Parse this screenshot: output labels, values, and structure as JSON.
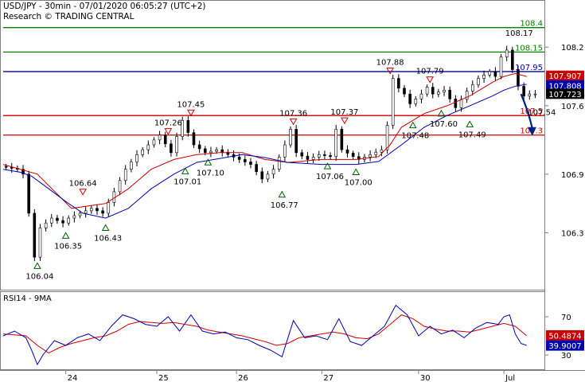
{
  "chart_data": [
    {
      "type": "line",
      "subtype": "candlestick",
      "title": "USD/JPY - 30min - 07/01/2020 06:05:27 (UTC+2)",
      "subtitle": "Research © TRADING CENTRAL",
      "ylim": [
        105.75,
        108.65
      ],
      "y_ticks": [
        {
          "value": 108.2,
          "label": "108.2"
        },
        {
          "value": 107.6,
          "label": "107.6"
        },
        {
          "value": 106.9,
          "label": "106.9"
        },
        {
          "value": 106.3,
          "label": "106.3"
        }
      ],
      "x_ticks": [
        {
          "bar": 11,
          "label": "24"
        },
        {
          "bar": 27,
          "label": "25"
        },
        {
          "bar": 41,
          "label": "26"
        },
        {
          "bar": 56,
          "label": "27"
        },
        {
          "bar": 73,
          "label": "30"
        },
        {
          "bar": 88,
          "label": "Jul"
        }
      ],
      "grid": false,
      "price_path": [
        [
          0,
          106.98
        ],
        [
          3,
          106.95
        ],
        [
          4,
          106.9
        ],
        [
          5,
          106.5
        ],
        [
          6,
          106.05
        ],
        [
          7,
          106.35
        ],
        [
          9,
          106.45
        ],
        [
          11,
          106.4
        ],
        [
          12,
          106.45
        ],
        [
          14,
          106.5
        ],
        [
          16,
          106.55
        ],
        [
          18,
          106.5
        ],
        [
          20,
          106.72
        ],
        [
          22,
          106.95
        ],
        [
          24,
          107.1
        ],
        [
          26,
          107.2
        ],
        [
          28,
          107.3
        ],
        [
          30,
          107.12
        ],
        [
          32,
          107.45
        ],
        [
          34,
          107.2
        ],
        [
          36,
          107.12
        ],
        [
          38,
          107.15
        ],
        [
          40,
          107.1
        ],
        [
          42,
          107.05
        ],
        [
          44,
          107.0
        ],
        [
          46,
          106.85
        ],
        [
          48,
          106.95
        ],
        [
          50,
          107.2
        ],
        [
          51,
          107.36
        ],
        [
          52,
          107.12
        ],
        [
          54,
          107.05
        ],
        [
          56,
          107.1
        ],
        [
          58,
          107.08
        ],
        [
          59,
          107.36
        ],
        [
          60,
          107.15
        ],
        [
          62,
          107.08
        ],
        [
          63,
          107.05
        ],
        [
          65,
          107.1
        ],
        [
          67,
          107.15
        ],
        [
          68,
          107.4
        ],
        [
          69,
          107.88
        ],
        [
          70,
          107.78
        ],
        [
          71,
          107.72
        ],
        [
          72,
          107.62
        ],
        [
          74,
          107.72
        ],
        [
          75,
          107.79
        ],
        [
          76,
          107.72
        ],
        [
          78,
          107.76
        ],
        [
          80,
          107.58
        ],
        [
          82,
          107.75
        ],
        [
          84,
          107.88
        ],
        [
          86,
          107.95
        ],
        [
          87,
          107.9
        ],
        [
          88,
          108.1
        ],
        [
          89,
          108.17
        ],
        [
          90,
          107.97
        ],
        [
          91,
          107.8
        ],
        [
          92,
          107.7
        ],
        [
          93,
          107.72
        ]
      ],
      "series": [
        {
          "values": [
            [
              0,
              107.0
            ],
            [
              6,
              106.9
            ],
            [
              12,
              106.55
            ],
            [
              18,
              106.6
            ],
            [
              22,
              106.75
            ],
            [
              26,
              106.95
            ],
            [
              30,
              107.05
            ],
            [
              34,
              107.1
            ],
            [
              38,
              107.12
            ],
            [
              42,
              107.12
            ],
            [
              46,
              107.05
            ],
            [
              50,
              107.02
            ],
            [
              56,
              107.05
            ],
            [
              62,
              107.05
            ],
            [
              66,
              107.08
            ],
            [
              68,
              107.2
            ],
            [
              70,
              107.38
            ],
            [
              74,
              107.52
            ],
            [
              78,
              107.6
            ],
            [
              82,
              107.7
            ],
            [
              86,
              107.84
            ],
            [
              88,
              107.9
            ],
            [
              90,
              107.93
            ],
            [
              92,
              107.9
            ]
          ]
        },
        {
          "values": [
            [
              0,
              106.95
            ],
            [
              3,
              106.92
            ],
            [
              5,
              106.88
            ],
            [
              8,
              106.75
            ],
            [
              11,
              106.62
            ],
            [
              14,
              106.5
            ],
            [
              18,
              106.45
            ],
            [
              22,
              106.55
            ],
            [
              26,
              106.75
            ],
            [
              30,
              106.9
            ],
            [
              34,
              107.02
            ],
            [
              38,
              107.06
            ],
            [
              42,
              107.1
            ],
            [
              46,
              107.07
            ],
            [
              50,
              107.02
            ],
            [
              56,
              107.0
            ],
            [
              62,
              107.0
            ],
            [
              66,
              107.03
            ],
            [
              70,
              107.2
            ],
            [
              74,
              107.38
            ],
            [
              78,
              107.5
            ],
            [
              82,
              107.6
            ],
            [
              86,
              107.7
            ],
            [
              88,
              107.76
            ],
            [
              90,
              107.8
            ],
            [
              92,
              107.82
            ]
          ]
        }
      ],
      "level_lines": [
        {
          "value": 108.4,
          "label": "108.4",
          "color": "#008000"
        },
        {
          "value": 108.15,
          "label": "108.15",
          "color": "#008000"
        },
        {
          "value": 107.95,
          "label": "107.95",
          "color": "#0000b0"
        },
        {
          "value": 107.5,
          "label": "107.5",
          "color": "#cc0000"
        },
        {
          "value": 107.3,
          "label": "107.3",
          "color": "#cc0000"
        }
      ],
      "price_tags": [
        {
          "value": 107.907,
          "label": "107.907",
          "color": "#cc0000"
        },
        {
          "value": 107.808,
          "label": "107.808",
          "color": "#0000b0"
        },
        {
          "value": 107.723,
          "label": "107.723",
          "color": "#000000"
        }
      ],
      "annotations": [
        {
          "bar": 6,
          "value": 106.04,
          "label": "106.04",
          "marker": "up"
        },
        {
          "bar": 11,
          "value": 106.35,
          "label": "106.35",
          "marker": "up"
        },
        {
          "bar": 14,
          "value": 106.64,
          "label": "106.64",
          "marker": "down"
        },
        {
          "bar": 18,
          "value": 106.43,
          "label": "106.43",
          "marker": "up"
        },
        {
          "bar": 29,
          "value": 107.26,
          "label": "107.26",
          "marker": "down"
        },
        {
          "bar": 32,
          "value": 107.01,
          "label": "107.01",
          "marker": "up"
        },
        {
          "bar": 33,
          "value": 107.45,
          "label": "107.45",
          "marker": "down"
        },
        {
          "bar": 36,
          "value": 107.1,
          "label": "107.10",
          "marker": "up"
        },
        {
          "bar": 49,
          "value": 106.77,
          "label": "106.77",
          "marker": "up"
        },
        {
          "bar": 51,
          "value": 107.36,
          "label": "107.36",
          "marker": "down"
        },
        {
          "bar": 57,
          "value": 107.06,
          "label": "107.06",
          "marker": "up"
        },
        {
          "bar": 60,
          "value": 107.37,
          "label": "107.37",
          "marker": "down"
        },
        {
          "bar": 62,
          "value": 107.0,
          "label": "107.00",
          "marker": "up"
        },
        {
          "bar": 68,
          "value": 107.88,
          "label": "107.88",
          "marker": "down"
        },
        {
          "bar": 72,
          "value": 107.48,
          "label": "107.48",
          "marker": "up"
        },
        {
          "bar": 75,
          "value": 107.79,
          "label": "107.79",
          "marker": "down"
        },
        {
          "bar": 77,
          "value": 107.6,
          "label": "107.60",
          "marker": "up"
        },
        {
          "bar": 82,
          "value": 107.49,
          "label": "107.49",
          "marker": "up"
        },
        {
          "bar": 89,
          "value": 108.17,
          "label": "108.17",
          "marker": "none"
        },
        {
          "bar": 93,
          "value": 107.54,
          "label": "107.54",
          "marker": "none"
        }
      ],
      "forecast_arrow": {
        "from_bar": 91,
        "from_value": 107.72,
        "to_bar": 93,
        "to_value": 107.3,
        "color": "#002080"
      }
    },
    {
      "type": "line",
      "title": "RSI14 - 9MA",
      "ylim": [
        15,
        95
      ],
      "y_ticks": [
        {
          "value": 70,
          "label": "70"
        },
        {
          "value": 30,
          "label": "30"
        }
      ],
      "series": [
        {
          "values": [
            [
              0,
              50
            ],
            [
              2,
              55
            ],
            [
              4,
              48
            ],
            [
              5,
              35
            ],
            [
              6,
              20
            ],
            [
              7,
              30
            ],
            [
              9,
              45
            ],
            [
              11,
              40
            ],
            [
              13,
              48
            ],
            [
              15,
              52
            ],
            [
              17,
              45
            ],
            [
              19,
              60
            ],
            [
              21,
              72
            ],
            [
              23,
              68
            ],
            [
              25,
              62
            ],
            [
              27,
              60
            ],
            [
              29,
              70
            ],
            [
              31,
              55
            ],
            [
              33,
              72
            ],
            [
              35,
              55
            ],
            [
              37,
              52
            ],
            [
              39,
              54
            ],
            [
              41,
              48
            ],
            [
              43,
              46
            ],
            [
              45,
              40
            ],
            [
              47,
              35
            ],
            [
              49,
              28
            ],
            [
              51,
              66
            ],
            [
              53,
              48
            ],
            [
              55,
              50
            ],
            [
              57,
              46
            ],
            [
              59,
              68
            ],
            [
              61,
              44
            ],
            [
              63,
              40
            ],
            [
              65,
              50
            ],
            [
              67,
              60
            ],
            [
              69,
              82
            ],
            [
              71,
              72
            ],
            [
              73,
              50
            ],
            [
              75,
              60
            ],
            [
              77,
              52
            ],
            [
              79,
              56
            ],
            [
              81,
              48
            ],
            [
              83,
              58
            ],
            [
              85,
              64
            ],
            [
              87,
              62
            ],
            [
              88,
              70
            ],
            [
              89,
              72
            ],
            [
              90,
              52
            ],
            [
              91,
              42
            ],
            [
              92,
              40
            ]
          ]
        },
        {
          "values": [
            [
              0,
              52
            ],
            [
              4,
              50
            ],
            [
              6,
              40
            ],
            [
              8,
              32
            ],
            [
              10,
              38
            ],
            [
              12,
              42
            ],
            [
              14,
              45
            ],
            [
              16,
              48
            ],
            [
              18,
              50
            ],
            [
              20,
              55
            ],
            [
              22,
              62
            ],
            [
              24,
              65
            ],
            [
              26,
              64
            ],
            [
              28,
              63
            ],
            [
              30,
              64
            ],
            [
              32,
              62
            ],
            [
              34,
              60
            ],
            [
              36,
              56
            ],
            [
              38,
              54
            ],
            [
              40,
              52
            ],
            [
              42,
              50
            ],
            [
              44,
              47
            ],
            [
              46,
              44
            ],
            [
              48,
              40
            ],
            [
              50,
              42
            ],
            [
              52,
              48
            ],
            [
              54,
              50
            ],
            [
              56,
              52
            ],
            [
              58,
              54
            ],
            [
              60,
              52
            ],
            [
              62,
              48
            ],
            [
              64,
              47
            ],
            [
              66,
              52
            ],
            [
              68,
              62
            ],
            [
              70,
              72
            ],
            [
              72,
              68
            ],
            [
              74,
              60
            ],
            [
              76,
              57
            ],
            [
              78,
              55
            ],
            [
              80,
              55
            ],
            [
              82,
              54
            ],
            [
              84,
              57
            ],
            [
              86,
              60
            ],
            [
              88,
              63
            ],
            [
              90,
              60
            ],
            [
              91,
              55
            ],
            [
              92,
              50
            ]
          ]
        }
      ],
      "value_tags": [
        {
          "value": 50.4874,
          "label": "50.4874",
          "color": "#cc0000"
        },
        {
          "value": 39.9007,
          "label": "39.9007",
          "color": "#0000b0"
        }
      ]
    }
  ]
}
